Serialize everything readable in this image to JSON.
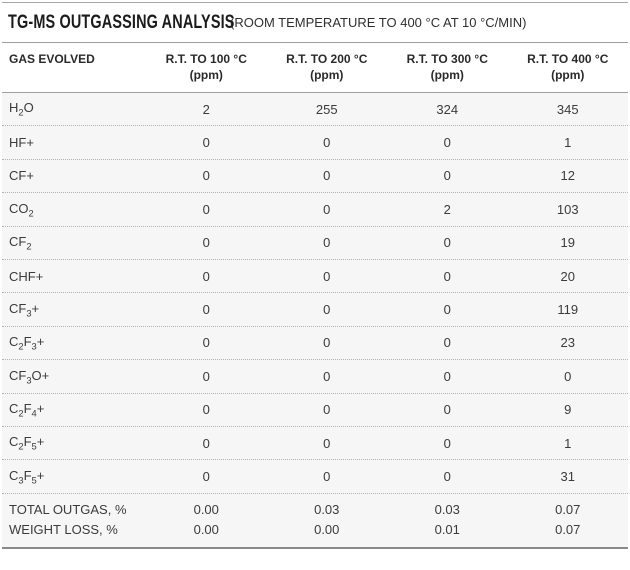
{
  "page": {
    "title": "TG-MS OUTGASSING ANALYSIS",
    "subtitle": "(ROOM TEMPERATURE TO 400 °C AT 10 °C/MIN)"
  },
  "table": {
    "gas_header": "GAS EVOLVED",
    "columns": [
      {
        "label": "R.T. TO 100 °C",
        "unit": "(ppm)"
      },
      {
        "label": "R.T. TO 200 °C",
        "unit": "(ppm)"
      },
      {
        "label": "R.T. TO 300 °C",
        "unit": "(ppm)"
      },
      {
        "label": "R.T. TO 400 °C",
        "unit": "(ppm)"
      }
    ],
    "rows": [
      {
        "gas": [
          [
            "n",
            "H"
          ],
          [
            "s",
            "2"
          ],
          [
            "n",
            "O"
          ]
        ],
        "values": [
          "2",
          "255",
          "324",
          "345"
        ]
      },
      {
        "gas": [
          [
            "n",
            "HF+"
          ]
        ],
        "values": [
          "0",
          "0",
          "0",
          "1"
        ]
      },
      {
        "gas": [
          [
            "n",
            "CF+"
          ]
        ],
        "values": [
          "0",
          "0",
          "0",
          "12"
        ]
      },
      {
        "gas": [
          [
            "n",
            "CO"
          ],
          [
            "s",
            "2"
          ]
        ],
        "values": [
          "0",
          "0",
          "2",
          "103"
        ]
      },
      {
        "gas": [
          [
            "n",
            "CF"
          ],
          [
            "s",
            "2"
          ]
        ],
        "values": [
          "0",
          "0",
          "0",
          "19"
        ]
      },
      {
        "gas": [
          [
            "n",
            "CHF+"
          ]
        ],
        "values": [
          "0",
          "0",
          "0",
          "20"
        ]
      },
      {
        "gas": [
          [
            "n",
            "CF"
          ],
          [
            "s",
            "3"
          ],
          [
            "n",
            "+"
          ]
        ],
        "values": [
          "0",
          "0",
          "0",
          "119"
        ]
      },
      {
        "gas": [
          [
            "n",
            "C"
          ],
          [
            "s",
            "2"
          ],
          [
            "n",
            "F"
          ],
          [
            "s",
            "3"
          ],
          [
            "n",
            "+"
          ]
        ],
        "values": [
          "0",
          "0",
          "0",
          "23"
        ]
      },
      {
        "gas": [
          [
            "n",
            "CF"
          ],
          [
            "s",
            "3"
          ],
          [
            "n",
            "O+"
          ]
        ],
        "values": [
          "0",
          "0",
          "0",
          "0"
        ]
      },
      {
        "gas": [
          [
            "n",
            "C"
          ],
          [
            "s",
            "2"
          ],
          [
            "n",
            "F"
          ],
          [
            "s",
            "4"
          ],
          [
            "n",
            "+"
          ]
        ],
        "values": [
          "0",
          "0",
          "0",
          "9"
        ]
      },
      {
        "gas": [
          [
            "n",
            "C"
          ],
          [
            "s",
            "2"
          ],
          [
            "n",
            "F"
          ],
          [
            "s",
            "5"
          ],
          [
            "n",
            "+"
          ]
        ],
        "values": [
          "0",
          "0",
          "0",
          "1"
        ]
      },
      {
        "gas": [
          [
            "n",
            "C"
          ],
          [
            "s",
            "3"
          ],
          [
            "n",
            "F"
          ],
          [
            "s",
            "5"
          ],
          [
            "n",
            "+"
          ]
        ],
        "values": [
          "0",
          "0",
          "0",
          "31"
        ]
      }
    ],
    "summary_rows": [
      {
        "label": "TOTAL OUTGAS, %",
        "values": [
          "0.00",
          "0.03",
          "0.03",
          "0.07"
        ]
      },
      {
        "label": "WEIGHT LOSS, %",
        "values": [
          "0.00",
          "0.00",
          "0.01",
          "0.07"
        ]
      }
    ]
  },
  "colors": {
    "rule": "#9e9e9e",
    "rule_heavy": "#8a8a8a",
    "dotted_separator": "#b3b3b3",
    "table_body_background": "#f6f6f6",
    "title_text": "#1b1b1b",
    "data_text": "#3b3b3b"
  }
}
